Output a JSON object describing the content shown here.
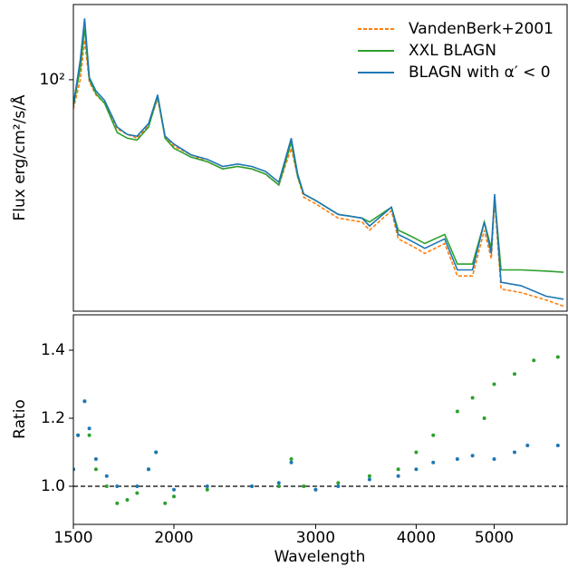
{
  "chart_data": [
    {
      "type": "line",
      "xscale": "log",
      "yscale": "log",
      "ylabel": "Flux erg/cm²/s/Å",
      "legend": "upper right",
      "xlim": [
        1500,
        6160
      ],
      "ylim": [
        14.1,
        189
      ],
      "yticks": [
        {
          "value": 100,
          "label": "10²"
        }
      ],
      "x": [
        1500,
        1530,
        1549,
        1570,
        1600,
        1640,
        1700,
        1750,
        1800,
        1860,
        1909,
        1950,
        2000,
        2100,
        2200,
        2300,
        2400,
        2500,
        2600,
        2700,
        2798,
        2850,
        2900,
        3000,
        3200,
        3426,
        3500,
        3727,
        3800,
        3900,
        4000,
        4100,
        4340,
        4500,
        4700,
        4861,
        4959,
        5007,
        5100,
        5400,
        5800,
        6100
      ],
      "series": [
        {
          "name": "VandenBerk+2001",
          "color": "#ff7f0e",
          "dashed": true,
          "values": [
            78,
            100,
            140,
            98,
            88,
            82,
            66,
            63,
            61,
            68,
            85,
            62,
            57,
            53,
            50,
            47,
            48,
            47,
            45,
            41,
            56,
            44,
            37,
            35,
            31,
            30,
            28,
            33,
            26,
            25,
            24,
            23,
            25,
            19,
            19,
            28,
            22,
            36,
            17,
            16.5,
            15.5,
            14.7
          ]
        },
        {
          "name": "XXL BLAGN",
          "color": "#2ca02c",
          "values": [
            80,
            110,
            155,
            100,
            89,
            82,
            64,
            61,
            60,
            67,
            87,
            61,
            56,
            52,
            50,
            47,
            48,
            47,
            45,
            41,
            59,
            44,
            38,
            36,
            32,
            31,
            30,
            34,
            28,
            27,
            26,
            25,
            27,
            21,
            21,
            30,
            24,
            37,
            20,
            20,
            19.8,
            19.6
          ]
        },
        {
          "name": "BLAGN with α′ < 0",
          "color": "#1f77b4",
          "values": [
            81,
            118,
            168,
            102,
            91,
            84,
            67,
            63,
            62,
            69,
            88,
            62,
            58,
            53,
            51,
            48,
            49,
            48,
            46,
            42,
            61,
            45,
            38,
            36,
            32,
            31,
            29,
            34,
            27,
            26,
            25,
            24,
            26,
            20,
            20,
            30,
            23,
            38,
            18,
            17.5,
            16,
            15.6
          ]
        }
      ]
    },
    {
      "type": "scatter",
      "xscale": "log",
      "ylabel": "Ratio",
      "xlabel": "Wavelength",
      "xlim": [
        1500,
        6160
      ],
      "ylim": [
        0.888,
        1.504
      ],
      "xticks": [
        1500,
        2000,
        3000,
        4000,
        5000
      ],
      "yticks": [
        {
          "value": 1.0,
          "label": "1.0"
        },
        {
          "value": 1.2,
          "label": "1.2"
        },
        {
          "value": 1.4,
          "label": "1.4"
        }
      ],
      "reference_line": 1,
      "series": [
        {
          "name": "XXL BLAGN",
          "color": "#2ca02c",
          "x": [
            1500,
            1520,
            1549,
            1570,
            1600,
            1650,
            1700,
            1750,
            1800,
            1860,
            1900,
            1950,
            2000,
            2200,
            2500,
            2700,
            2798,
            2900,
            3000,
            3200,
            3500,
            3800,
            4000,
            4200,
            4500,
            4700,
            4861,
            5000,
            5300,
            5600,
            6000
          ],
          "values": [
            1.05,
            1.15,
            1.25,
            1.15,
            1.05,
            1.0,
            0.95,
            0.96,
            0.98,
            1.05,
            1.1,
            0.95,
            0.97,
            0.99,
            1.0,
            1.0,
            1.08,
            1.0,
            0.99,
            1.01,
            1.03,
            1.05,
            1.1,
            1.15,
            1.22,
            1.26,
            1.2,
            1.3,
            1.33,
            1.37,
            1.38
          ]
        },
        {
          "name": "BLAGN with α′ < 0",
          "color": "#1f77b4",
          "x": [
            1500,
            1520,
            1549,
            1570,
            1600,
            1650,
            1700,
            1800,
            1860,
            1900,
            2000,
            2200,
            2500,
            2700,
            2798,
            3000,
            3200,
            3500,
            3800,
            4000,
            4200,
            4500,
            4700,
            5000,
            5300,
            5500,
            6000
          ],
          "values": [
            1.05,
            1.15,
            1.25,
            1.17,
            1.08,
            1.03,
            1.0,
            1.0,
            1.05,
            1.1,
            0.99,
            1.0,
            1.0,
            1.01,
            1.07,
            0.99,
            1.0,
            1.02,
            1.03,
            1.05,
            1.07,
            1.08,
            1.09,
            1.08,
            1.1,
            1.12,
            1.12
          ]
        }
      ]
    }
  ]
}
